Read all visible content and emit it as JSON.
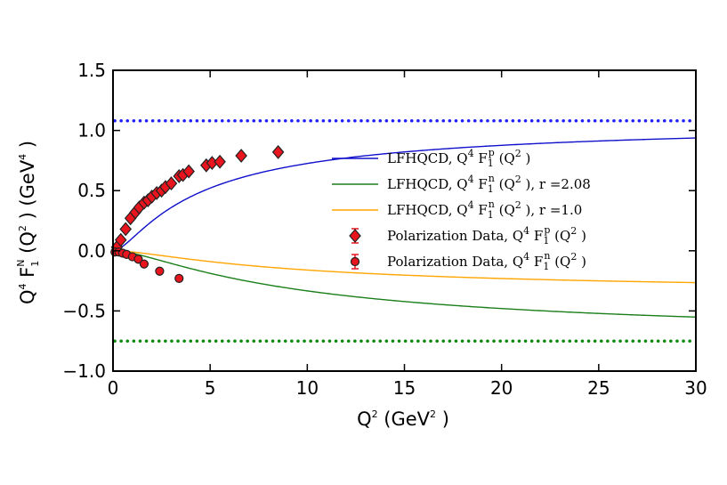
{
  "chart_data": {
    "type": "line",
    "xlabel": {
      "base": "Q",
      "sup": "2",
      "rest": " (GeV",
      "sup2": "2",
      "end": " )"
    },
    "ylabel": {
      "pre": "Q",
      "sup": "4",
      "mid": " F",
      "sub": "1",
      "sup_n": "N",
      "rest": " (Q",
      "sup2": "2",
      "rest2": " ) (GeV",
      "sup3": "4",
      "end": " )"
    },
    "xlim": [
      0,
      30
    ],
    "ylim": [
      -1.0,
      1.5
    ],
    "xticks": [
      "0",
      "5",
      "10",
      "15",
      "20",
      "25",
      "30"
    ],
    "yticks": [
      "−1.0",
      "−0.5",
      "0.0",
      "0.5",
      "1.0",
      "1.5"
    ],
    "ytick_values": [
      -1.0,
      -0.5,
      0.0,
      0.5,
      1.0,
      1.5
    ],
    "xtick_values": [
      0,
      5,
      10,
      15,
      20,
      25,
      30
    ],
    "hlines": [
      {
        "name": "proton-asymptote",
        "y": 1.08,
        "color": "#1f1fff",
        "style": "dotted"
      },
      {
        "name": "neutron-asymptote",
        "y": -0.75,
        "color": "#0a8a0a",
        "style": "dotted"
      }
    ],
    "curves": [
      {
        "name": "proton",
        "color": "#1010cc",
        "A": 1.08,
        "mu": 2.2,
        "label": "LFHQCD, Q⁴ F₁ᵖ (Q² )"
      },
      {
        "name": "neutron-r208",
        "color": "#1a7f1a",
        "A": -0.75,
        "mu": 5.0,
        "label": "LFHQCD, Q⁴ F₁ⁿ (Q² ), r =2.08"
      },
      {
        "name": "neutron-r10",
        "color": "#ffa500",
        "A": -0.36,
        "mu": 5.0,
        "label": "LFHQCD, Q⁴ F₁ⁿ (Q² ), r =1.0"
      }
    ],
    "series": [
      {
        "name": "Polarization Data, proton",
        "marker": "diamond",
        "x": [
          0.2,
          0.4,
          0.65,
          0.9,
          1.15,
          1.35,
          1.6,
          1.8,
          2.0,
          2.25,
          2.5,
          2.7,
          3.0,
          3.4,
          3.6,
          3.9,
          4.8,
          5.1,
          5.5,
          6.6,
          8.5
        ],
        "y": [
          0.03,
          0.09,
          0.18,
          0.27,
          0.32,
          0.36,
          0.4,
          0.42,
          0.45,
          0.48,
          0.5,
          0.53,
          0.56,
          0.62,
          0.63,
          0.66,
          0.71,
          0.73,
          0.74,
          0.79,
          0.82
        ]
      },
      {
        "name": "Polarization Data, neutron",
        "marker": "circle",
        "x": [
          0.1,
          0.3,
          0.5,
          0.7,
          1.0,
          1.3,
          1.6,
          2.4,
          3.4
        ],
        "y": [
          -0.01,
          -0.01,
          -0.02,
          -0.03,
          -0.05,
          -0.07,
          -0.11,
          -0.17,
          -0.23
        ]
      }
    ],
    "legend": {
      "position": "center-right",
      "entries": [
        {
          "kind": "line",
          "color": "#1010cc",
          "pre": "LFHQCD, Q",
          "s1": "4",
          "f": " F",
          "sub": "1",
          "sup": "p",
          "post": " (Q",
          "s2": "2",
          "end": " )"
        },
        {
          "kind": "line",
          "color": "#1a7f1a",
          "pre": "LFHQCD, Q",
          "s1": "4",
          "f": " F",
          "sub": "1",
          "sup": "n",
          "post": " (Q",
          "s2": "2",
          "end": " ), r =2.08"
        },
        {
          "kind": "line",
          "color": "#ffa500",
          "pre": "LFHQCD, Q",
          "s1": "4",
          "f": " F",
          "sub": "1",
          "sup": "n",
          "post": " (Q",
          "s2": "2",
          "end": " ), r =1.0"
        },
        {
          "kind": "diamond",
          "color": "#e8141e",
          "pre": "Polarization Data, Q",
          "s1": "4",
          "f": " F",
          "sub": "1",
          "sup": "p",
          "post": " (Q",
          "s2": "2",
          "end": " )"
        },
        {
          "kind": "circle",
          "color": "#e8141e",
          "pre": "Polarization Data, Q",
          "s1": "4",
          "f": " F",
          "sub": "1",
          "sup": "n",
          "post": " (Q",
          "s2": "2",
          "end": " )"
        }
      ]
    }
  }
}
